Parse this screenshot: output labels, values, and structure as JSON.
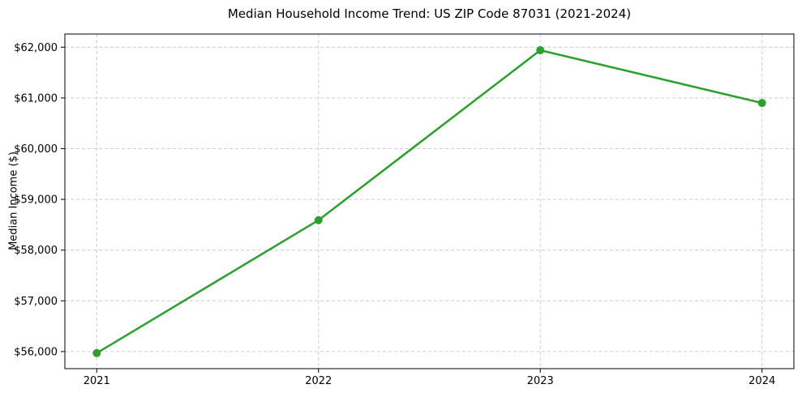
{
  "chart_data": {
    "type": "line",
    "title": "Median Household Income Trend: US ZIP Code 87031 (2021-2024)",
    "xlabel": "",
    "ylabel": "Median Income ($)",
    "categories": [
      "2021",
      "2022",
      "2023",
      "2024"
    ],
    "series": [
      {
        "name": "Median Income ($)",
        "values": [
          55970,
          58590,
          61940,
          60900
        ]
      }
    ],
    "y_ticks": [
      56000,
      57000,
      58000,
      59000,
      60000,
      61000,
      62000
    ],
    "y_tick_labels": [
      "$56,000",
      "$57,000",
      "$58,000",
      "$59,000",
      "$60,000",
      "$61,000",
      "$62,000"
    ],
    "ylim": [
      55663,
      62260
    ],
    "grid": true,
    "grid_style": "dashed",
    "legend": false,
    "colors": {
      "line": "#2ca02c",
      "marker": "#2ca02c",
      "grid": "#cccccc",
      "spine": "#000000",
      "background": "#ffffff",
      "text": "#000000"
    }
  }
}
